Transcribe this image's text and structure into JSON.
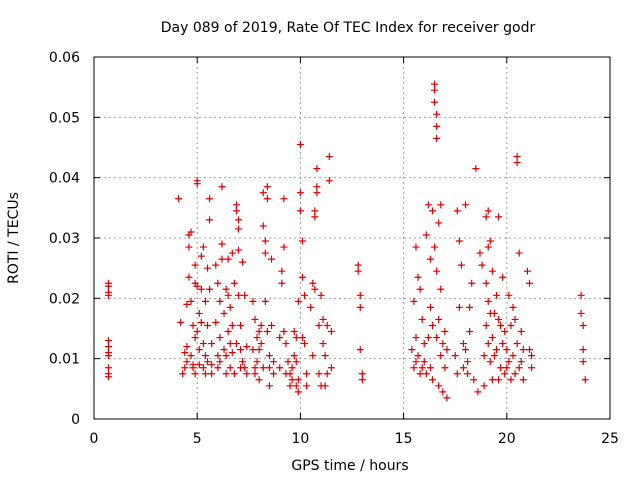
{
  "chart_data": {
    "type": "scatter",
    "title": "Day 089 of 2019, Rate Of TEC Index for receiver godr",
    "xlabel": "GPS time / hours",
    "ylabel": "ROTI / TECUs",
    "xlim": [
      0,
      25
    ],
    "ylim": [
      0,
      0.06
    ],
    "xticks": [
      0,
      5,
      10,
      15,
      20,
      25
    ],
    "yticks": [
      0,
      0.01,
      0.02,
      0.03,
      0.04,
      0.05,
      0.06
    ],
    "xtick_labels": [
      "0",
      "5",
      "10",
      "15",
      "20",
      "25"
    ],
    "ytick_labels": [
      "0",
      "0.01",
      "0.02",
      "0.03",
      "0.04",
      "0.05",
      "0.06"
    ],
    "grid": true,
    "marker": "+",
    "color": "#e00000",
    "x": [
      0.7,
      0.7,
      0.7,
      0.7,
      0.7,
      0.7,
      0.7,
      0.7,
      0.7,
      0.7,
      0.7,
      4.1,
      4.2,
      4.3,
      4.4,
      4.4,
      4.5,
      4.5,
      4.5,
      4.6,
      4.6,
      4.6,
      4.7,
      4.7,
      4.7,
      4.8,
      4.8,
      4.8,
      4.9,
      4.9,
      4.9,
      4.9,
      5.0,
      5.0,
      5.0,
      5.0,
      5.1,
      5.1,
      5.1,
      5.2,
      5.2,
      5.2,
      5.3,
      5.3,
      5.3,
      5.4,
      5.4,
      5.4,
      5.5,
      5.5,
      5.5,
      5.6,
      5.6,
      5.6,
      5.7,
      5.7,
      5.7,
      5.9,
      5.9,
      6.0,
      6.0,
      6.0,
      6.1,
      6.1,
      6.1,
      6.2,
      6.2,
      6.2,
      6.3,
      6.3,
      6.4,
      6.4,
      6.4,
      6.5,
      6.5,
      6.5,
      6.6,
      6.6,
      6.6,
      6.7,
      6.7,
      6.7,
      6.8,
      6.8,
      6.9,
      6.9,
      6.9,
      7.0,
      7.0,
      7.0,
      7.0,
      7.1,
      7.1,
      7.1,
      7.2,
      7.2,
      7.3,
      7.3,
      7.4,
      7.4,
      7.7,
      7.7,
      7.8,
      7.8,
      7.8,
      7.9,
      7.9,
      8.0,
      8.0,
      8.0,
      8.1,
      8.1,
      8.2,
      8.2,
      8.2,
      8.3,
      8.3,
      8.3,
      8.4,
      8.4,
      8.4,
      8.5,
      8.5,
      8.5,
      8.6,
      8.6,
      8.7,
      8.7,
      9.0,
      9.0,
      9.1,
      9.1,
      9.2,
      9.2,
      9.2,
      9.3,
      9.3,
      9.4,
      9.5,
      9.5,
      9.6,
      9.6,
      9.7,
      9.7,
      9.8,
      9.8,
      9.8,
      9.9,
      9.9,
      9.9,
      10.0,
      10.0,
      10.0,
      10.1,
      10.1,
      10.1,
      10.2,
      10.2,
      10.3,
      10.3,
      10.5,
      10.6,
      10.6,
      10.7,
      10.7,
      10.7,
      10.8,
      10.8,
      10.8,
      10.9,
      10.9,
      11.0,
      11.0,
      11.1,
      11.1,
      11.2,
      11.2,
      11.3,
      11.3,
      11.4,
      11.4,
      11.5,
      11.5,
      12.8,
      12.8,
      12.9,
      12.9,
      12.9,
      13.0,
      13.0,
      15.4,
      15.5,
      15.5,
      15.6,
      15.6,
      15.6,
      15.7,
      15.7,
      15.8,
      15.8,
      15.9,
      15.9,
      16.0,
      16.0,
      16.1,
      16.1,
      16.2,
      16.2,
      16.3,
      16.3,
      16.3,
      16.4,
      16.4,
      16.4,
      16.5,
      16.5,
      16.5,
      16.5,
      16.6,
      16.6,
      16.6,
      16.6,
      16.6,
      16.7,
      16.7,
      16.7,
      16.8,
      16.8,
      16.8,
      16.9,
      16.9,
      17.0,
      17.0,
      17.1,
      17.1,
      17.5,
      17.6,
      17.6,
      17.7,
      17.7,
      17.8,
      17.9,
      17.9,
      18.0,
      18.0,
      18.1,
      18.1,
      18.2,
      18.2,
      18.3,
      18.4,
      18.5,
      18.6,
      18.7,
      18.8,
      18.9,
      18.9,
      19.0,
      19.0,
      19.0,
      19.1,
      19.1,
      19.1,
      19.1,
      19.2,
      19.2,
      19.2,
      19.3,
      19.3,
      19.3,
      19.4,
      19.4,
      19.5,
      19.5,
      19.6,
      19.6,
      19.6,
      19.7,
      19.7,
      19.8,
      19.8,
      19.9,
      19.9,
      20.0,
      20.0,
      20.1,
      20.1,
      20.2,
      20.2,
      20.3,
      20.3,
      20.4,
      20.4,
      20.5,
      20.5,
      20.5,
      20.6,
      20.6,
      20.7,
      20.7,
      20.8,
      20.8,
      21.0,
      21.1,
      21.1,
      21.2,
      21.2,
      23.6,
      23.6,
      23.7,
      23.7,
      23.7,
      23.8
    ],
    "y": [
      0.0225,
      0.022,
      0.021,
      0.0205,
      0.013,
      0.012,
      0.011,
      0.0105,
      0.0085,
      0.0075,
      0.007,
      0.0365,
      0.016,
      0.0075,
      0.0085,
      0.011,
      0.012,
      0.0095,
      0.019,
      0.0235,
      0.0305,
      0.0285,
      0.031,
      0.0195,
      0.0105,
      0.0155,
      0.009,
      0.0085,
      0.0255,
      0.0225,
      0.0135,
      0.0075,
      0.0395,
      0.039,
      0.022,
      0.0145,
      0.0175,
      0.0115,
      0.009,
      0.016,
      0.027,
      0.0215,
      0.0285,
      0.0125,
      0.0085,
      0.0195,
      0.0105,
      0.0075,
      0.025,
      0.0155,
      0.0095,
      0.033,
      0.0365,
      0.0215,
      0.0125,
      0.009,
      0.0075,
      0.016,
      0.0255,
      0.0105,
      0.0085,
      0.0225,
      0.0195,
      0.0135,
      0.0095,
      0.0385,
      0.029,
      0.0265,
      0.0175,
      0.0115,
      0.0215,
      0.0105,
      0.0075,
      0.0265,
      0.0205,
      0.0145,
      0.0125,
      0.0085,
      0.0185,
      0.0275,
      0.0155,
      0.011,
      0.0225,
      0.0075,
      0.0355,
      0.0345,
      0.0125,
      0.033,
      0.0315,
      0.028,
      0.0205,
      0.0155,
      0.0115,
      0.0085,
      0.026,
      0.0095,
      0.0205,
      0.0085,
      0.012,
      0.0075,
      0.0195,
      0.0115,
      0.0165,
      0.0075,
      0.0085,
      0.0135,
      0.0095,
      0.0115,
      0.0145,
      0.0065,
      0.0125,
      0.0155,
      0.0085,
      0.0375,
      0.032,
      0.0295,
      0.0275,
      0.0195,
      0.0385,
      0.0365,
      0.0145,
      0.0105,
      0.0085,
      0.0055,
      0.0265,
      0.0155,
      0.0095,
      0.0075,
      0.0135,
      0.0085,
      0.0245,
      0.0225,
      0.0365,
      0.0285,
      0.0145,
      0.0125,
      0.0075,
      0.0095,
      0.0055,
      0.0075,
      0.0085,
      0.0065,
      0.0105,
      0.0145,
      0.0135,
      0.0095,
      0.0055,
      0.0195,
      0.0065,
      0.0045,
      0.0455,
      0.0375,
      0.0345,
      0.0295,
      0.0235,
      0.0135,
      0.0205,
      0.0125,
      0.0075,
      0.0055,
      0.0185,
      0.0225,
      0.0105,
      0.0345,
      0.0335,
      0.0215,
      0.0415,
      0.0385,
      0.0375,
      0.0155,
      0.0075,
      0.0205,
      0.0055,
      0.0165,
      0.0125,
      0.0105,
      0.0055,
      0.0155,
      0.0075,
      0.0435,
      0.0395,
      0.0145,
      0.0085,
      0.0255,
      0.0245,
      0.0205,
      0.0185,
      0.0115,
      0.0075,
      0.0065,
      0.0115,
      0.0195,
      0.0085,
      0.0285,
      0.0135,
      0.0095,
      0.0235,
      0.0105,
      0.0215,
      0.0075,
      0.0165,
      0.0085,
      0.0125,
      0.0095,
      0.0305,
      0.0075,
      0.0355,
      0.0135,
      0.0265,
      0.0185,
      0.0085,
      0.0345,
      0.0155,
      0.0065,
      0.0555,
      0.0545,
      0.0525,
      0.0285,
      0.0505,
      0.0485,
      0.0465,
      0.0245,
      0.0135,
      0.0325,
      0.0165,
      0.0055,
      0.0355,
      0.0215,
      0.0105,
      0.0125,
      0.0045,
      0.0145,
      0.0085,
      0.0115,
      0.0035,
      0.0105,
      0.0345,
      0.0075,
      0.0295,
      0.0185,
      0.0255,
      0.0125,
      0.0085,
      0.0355,
      0.0115,
      0.0095,
      0.0075,
      0.0185,
      0.0145,
      0.0225,
      0.0065,
      0.0415,
      0.0045,
      0.0275,
      0.0255,
      0.0105,
      0.0055,
      0.0335,
      0.0225,
      0.0155,
      0.0345,
      0.0285,
      0.0195,
      0.0125,
      0.0295,
      0.0175,
      0.0095,
      0.0245,
      0.0135,
      0.0065,
      0.0175,
      0.0105,
      0.0205,
      0.0115,
      0.0335,
      0.0165,
      0.0065,
      0.0155,
      0.0085,
      0.0235,
      0.0125,
      0.0145,
      0.0075,
      0.0115,
      0.0085,
      0.0205,
      0.0095,
      0.0155,
      0.0065,
      0.0185,
      0.0105,
      0.0165,
      0.0075,
      0.0435,
      0.0425,
      0.0125,
      0.0275,
      0.0085,
      0.0145,
      0.0095,
      0.0115,
      0.0065,
      0.0245,
      0.0225,
      0.0115,
      0.0105,
      0.0085,
      0.0205,
      0.0175,
      0.0155,
      0.0115,
      0.0095,
      0.0065
    ]
  }
}
